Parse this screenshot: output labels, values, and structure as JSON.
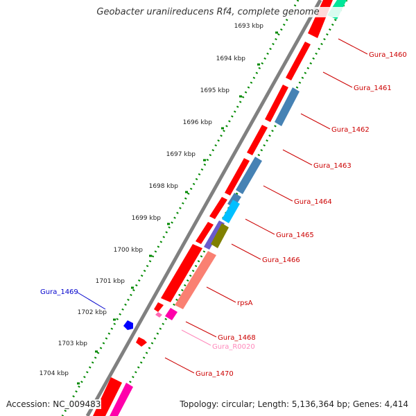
{
  "title": "Geobacter uraniireducens Rf4, complete genome",
  "accession": "Accession: NC_009483",
  "topology": "Topology: circular; Length: 5,136,364 bp; Genes: 4,414",
  "scale_labels": [
    "1693 kbp",
    "1694 kbp",
    "1695 kbp",
    "1696 kbp",
    "1697 kbp",
    "1698 kbp",
    "1699 kbp",
    "1700 kbp",
    "1701 kbp",
    "1702 kbp",
    "1703 kbp",
    "1704 kbp"
  ],
  "gene_labels": {
    "gura_1460": "Gura_1460",
    "gura_1461": "Gura_1461",
    "gura_1462": "Gura_1462",
    "gura_1463": "Gura_1463",
    "gura_1464": "Gura_1464",
    "gura_1465": "Gura_1465",
    "gura_1466": "Gura_1466",
    "rpsA": "rpsA",
    "gura_1468": "Gura_1468",
    "gura_r0020": "Gura_R0020",
    "gura_1470": "Gura_1470",
    "gura_1469": "Gura_1469"
  },
  "colors": {
    "cds": "#ff0000",
    "feature_blue": "#4682b4",
    "feature_cyan": "#00bfff",
    "feature_purple": "#6a5acd",
    "feature_olive": "#808000",
    "feature_salmon": "#fa8072",
    "feature_magenta": "#ff00aa",
    "feature_pink": "#ff69b4",
    "feature_green": "#00e699",
    "reverse_gene": "#0000ff",
    "label_forward": "#cc0000",
    "label_reverse": "#0000cc",
    "label_rna": "#ff88bb",
    "tick": "#008800",
    "backbone": "#808080"
  }
}
